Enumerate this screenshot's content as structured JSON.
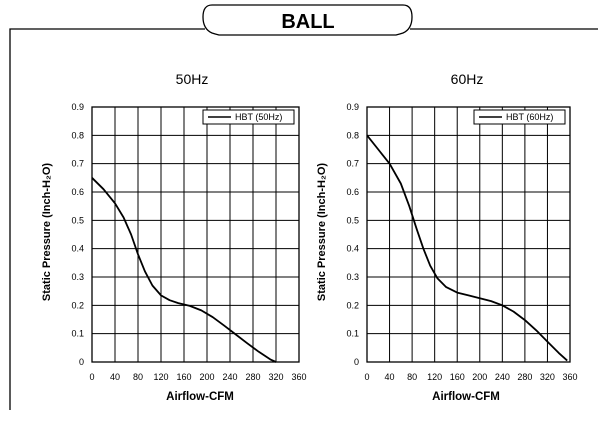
{
  "banner": {
    "title": "BALL"
  },
  "chart_data": [
    {
      "type": "line",
      "title": "50Hz",
      "xlabel": "Airflow-CFM",
      "ylabel": "Static Pressure (Inch-H₂O)",
      "xlim": [
        0,
        360
      ],
      "ylim": [
        0,
        0.9
      ],
      "x_ticks": [
        "0",
        "40",
        "80",
        "120",
        "160",
        "200",
        "240",
        "280",
        "320",
        "360"
      ],
      "y_ticks": [
        "0",
        "0.1",
        "0.2",
        "0.3",
        "0.4",
        "0.5",
        "0.6",
        "0.7",
        "0.8",
        "0.9"
      ],
      "grid": true,
      "legend": "top-right",
      "series": [
        {
          "name": "HBT (50Hz)",
          "color": "#000000",
          "x": [
            0,
            20,
            40,
            55,
            68,
            80,
            92,
            105,
            120,
            135,
            150,
            170,
            190,
            210,
            230,
            250,
            270,
            290,
            310,
            320
          ],
          "y": [
            0.65,
            0.61,
            0.56,
            0.51,
            0.45,
            0.38,
            0.32,
            0.27,
            0.235,
            0.218,
            0.208,
            0.198,
            0.182,
            0.158,
            0.128,
            0.097,
            0.066,
            0.036,
            0.009,
            0.0
          ]
        }
      ]
    },
    {
      "type": "line",
      "title": "60Hz",
      "xlabel": "Airflow-CFM",
      "ylabel": "Static Pressure (Inch-H₂O)",
      "xlim": [
        0,
        360
      ],
      "ylim": [
        0,
        0.9
      ],
      "x_ticks": [
        "0",
        "40",
        "80",
        "120",
        "160",
        "200",
        "240",
        "280",
        "320",
        "360"
      ],
      "y_ticks": [
        "0",
        "0.1",
        "0.2",
        "0.3",
        "0.4",
        "0.5",
        "0.6",
        "0.7",
        "0.8",
        "0.9"
      ],
      "grid": true,
      "legend": "top-right",
      "series": [
        {
          "name": "HBT (60Hz)",
          "color": "#000000",
          "x": [
            0,
            20,
            40,
            60,
            75,
            88,
            100,
            112,
            125,
            140,
            160,
            180,
            200,
            220,
            240,
            260,
            280,
            300,
            320,
            340,
            355
          ],
          "y": [
            0.8,
            0.75,
            0.7,
            0.63,
            0.55,
            0.47,
            0.4,
            0.34,
            0.295,
            0.265,
            0.245,
            0.235,
            0.225,
            0.215,
            0.2,
            0.178,
            0.148,
            0.112,
            0.072,
            0.032,
            0.005
          ]
        }
      ]
    }
  ]
}
